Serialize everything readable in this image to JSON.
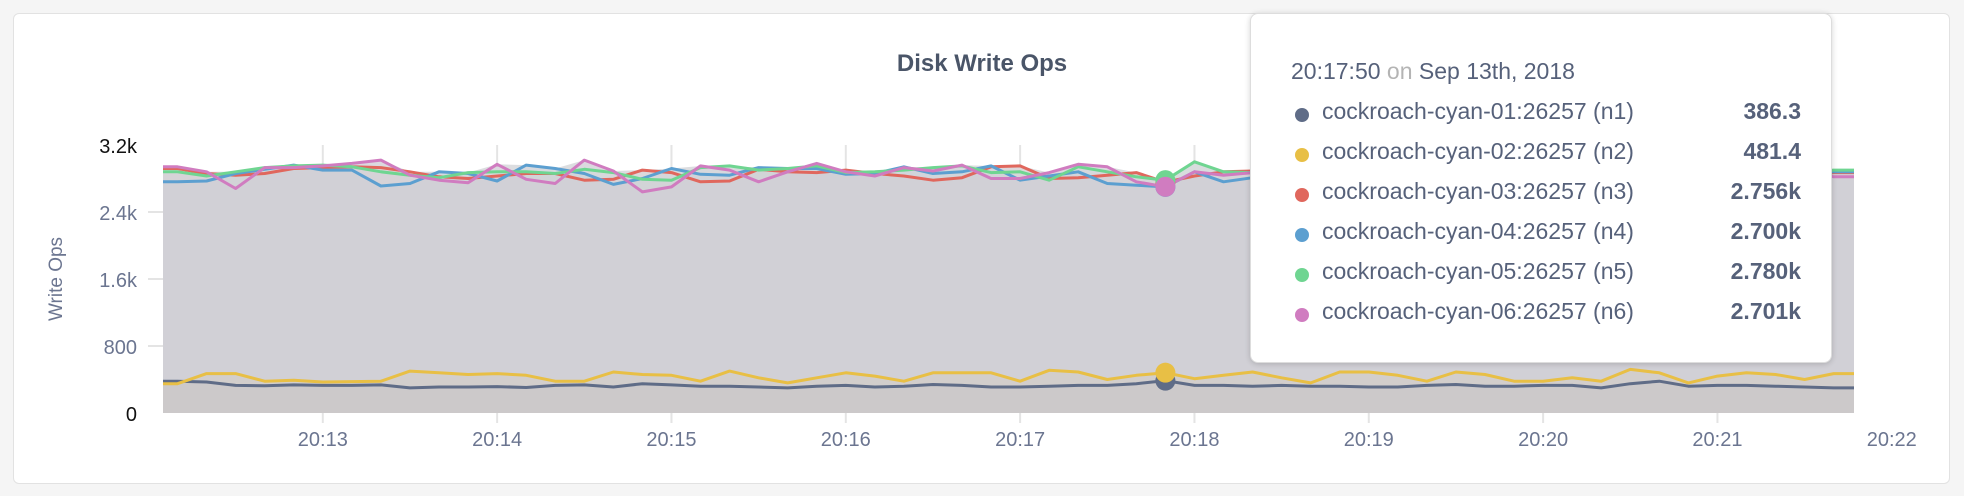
{
  "chart_data": {
    "type": "line",
    "title": "Disk Write Ops",
    "ylabel": "Write Ops",
    "xlabel": "",
    "ylim": [
      0,
      3200
    ],
    "yticks": [
      "0",
      "800",
      "1.6k",
      "2.4k",
      "3.2k"
    ],
    "ytick_values": [
      0,
      800,
      1600,
      2400,
      3200
    ],
    "xticks": [
      "20:13",
      "20:14",
      "20:15",
      "20:16",
      "20:17",
      "20:18",
      "20:19",
      "20:20",
      "20:21",
      "20:22"
    ],
    "xlim": [
      "20:12:05",
      "20:21:47"
    ],
    "grid": true,
    "area_fill": true,
    "x": [
      "20:12:10",
      "20:12:20",
      "20:12:30",
      "20:12:40",
      "20:12:50",
      "20:13:00",
      "20:13:10",
      "20:13:20",
      "20:13:30",
      "20:13:40",
      "20:13:50",
      "20:14:00",
      "20:14:10",
      "20:14:20",
      "20:14:30",
      "20:14:40",
      "20:14:50",
      "20:15:00",
      "20:15:10",
      "20:15:20",
      "20:15:30",
      "20:15:40",
      "20:15:50",
      "20:16:00",
      "20:16:10",
      "20:16:20",
      "20:16:30",
      "20:16:40",
      "20:16:50",
      "20:17:00",
      "20:17:10",
      "20:17:20",
      "20:17:30",
      "20:17:40",
      "20:17:50",
      "20:18:00",
      "20:18:10",
      "20:18:20",
      "20:18:30",
      "20:18:40",
      "20:18:50",
      "20:19:00",
      "20:19:10",
      "20:19:20",
      "20:19:30",
      "20:19:40",
      "20:19:50",
      "20:20:00",
      "20:20:10",
      "20:20:20",
      "20:20:30",
      "20:20:40",
      "20:20:50",
      "20:21:00",
      "20:21:10",
      "20:21:20",
      "20:21:30",
      "20:21:40"
    ],
    "series": [
      {
        "name": "cockroach-cyan-01:26257 (n1)",
        "color": "#5f6c87",
        "values": [
          380,
          370,
          330,
          325,
          335,
          330,
          330,
          335,
          300,
          310,
          310,
          315,
          305,
          330,
          335,
          310,
          350,
          335,
          320,
          320,
          310,
          300,
          320,
          330,
          310,
          320,
          340,
          330,
          310,
          310,
          320,
          330,
          330,
          350,
          386.3,
          330,
          330,
          320,
          330,
          320,
          320,
          310,
          310,
          330,
          340,
          320,
          320,
          330,
          330,
          300,
          350,
          380,
          320,
          330,
          330,
          320,
          310,
          300
        ]
      },
      {
        "name": "cockroach-cyan-02:26257 (n2)",
        "color": "#e8bf45",
        "values": [
          350,
          470,
          470,
          380,
          390,
          370,
          375,
          380,
          500,
          480,
          460,
          470,
          450,
          380,
          380,
          490,
          460,
          450,
          380,
          500,
          420,
          360,
          420,
          480,
          440,
          380,
          480,
          480,
          480,
          380,
          510,
          490,
          400,
          450,
          481.4,
          410,
          450,
          490,
          420,
          360,
          490,
          490,
          450,
          380,
          490,
          460,
          380,
          380,
          420,
          380,
          520,
          480,
          360,
          440,
          480,
          460,
          400,
          470
        ]
      },
      {
        "name": "cockroach-cyan-03:26257 (n3)",
        "color": "#e0675d",
        "values": [
          2920,
          2860,
          2840,
          2860,
          2920,
          2930,
          2940,
          2930,
          2880,
          2820,
          2800,
          2830,
          2860,
          2860,
          2780,
          2790,
          2900,
          2870,
          2760,
          2770,
          2910,
          2880,
          2870,
          2900,
          2860,
          2830,
          2780,
          2810,
          2940,
          2950,
          2800,
          2810,
          2840,
          2870,
          2756,
          2830,
          2880,
          2890,
          2900,
          2850,
          2800,
          2870,
          2880,
          2860,
          2820,
          2850,
          2880,
          2900,
          2860,
          2870,
          2830,
          2820,
          2860,
          2850,
          2860,
          2870,
          2830,
          2870
        ]
      },
      {
        "name": "cockroach-cyan-04:26257 (n4)",
        "color": "#5c9fd0",
        "values": [
          2760,
          2770,
          2860,
          2910,
          2960,
          2900,
          2900,
          2710,
          2740,
          2880,
          2860,
          2770,
          2960,
          2920,
          2860,
          2730,
          2800,
          2920,
          2850,
          2840,
          2930,
          2920,
          2920,
          2850,
          2860,
          2940,
          2860,
          2880,
          2950,
          2780,
          2830,
          2880,
          2740,
          2720,
          2700,
          2880,
          2760,
          2810,
          2850,
          2900,
          2820,
          2860,
          2840,
          2890,
          2870,
          2860,
          2880,
          2850,
          2790,
          2870,
          2830,
          2820,
          2880,
          2890,
          2830,
          2860,
          2870,
          2880
        ]
      },
      {
        "name": "cockroach-cyan-05:26257 (n5)",
        "color": "#6fd591",
        "values": [
          2880,
          2830,
          2880,
          2930,
          2950,
          2960,
          2940,
          2880,
          2840,
          2810,
          2870,
          2880,
          2880,
          2860,
          2910,
          2870,
          2790,
          2780,
          2930,
          2950,
          2900,
          2920,
          2950,
          2870,
          2880,
          2900,
          2930,
          2950,
          2870,
          2880,
          2780,
          2940,
          2880,
          2820,
          2780,
          3000,
          2880,
          2870,
          2890,
          2910,
          2860,
          2850,
          2880,
          2880,
          2860,
          2890,
          2880,
          2860,
          2880,
          2890,
          2910,
          2850,
          2870,
          2880,
          2890,
          2850,
          2870,
          2900
        ]
      },
      {
        "name": "cockroach-cyan-06:26257 (n6)",
        "color": "#d07cc0",
        "values": [
          2940,
          2880,
          2680,
          2930,
          2930,
          2950,
          2980,
          3020,
          2840,
          2780,
          2750,
          2970,
          2790,
          2740,
          3020,
          2890,
          2640,
          2700,
          2950,
          2900,
          2760,
          2880,
          2980,
          2880,
          2830,
          2930,
          2890,
          2960,
          2800,
          2800,
          2870,
          2970,
          2940,
          2760,
          2701,
          2880,
          2840,
          2870,
          2930,
          2860,
          2830,
          2850,
          2920,
          2880,
          2870,
          2850,
          2880,
          2860,
          2900,
          2880,
          2850,
          2870,
          2900,
          2880,
          2850,
          2870,
          2900,
          2820
        ]
      }
    ]
  },
  "tooltip": {
    "time": "20:17:50",
    "on": "on",
    "date": "Sep 13th, 2018",
    "hover_x": "20:17:50",
    "rows": [
      {
        "label": "cockroach-cyan-01:26257 (n1)",
        "value": "386.3",
        "color": "#5f6c87"
      },
      {
        "label": "cockroach-cyan-02:26257 (n2)",
        "value": "481.4",
        "color": "#e8bf45"
      },
      {
        "label": "cockroach-cyan-03:26257 (n3)",
        "value": "2.756k",
        "color": "#e0675d"
      },
      {
        "label": "cockroach-cyan-04:26257 (n4)",
        "value": "2.700k",
        "color": "#5c9fd0"
      },
      {
        "label": "cockroach-cyan-05:26257 (n5)",
        "value": "2.780k",
        "color": "#6fd591"
      },
      {
        "label": "cockroach-cyan-06:26257 (n6)",
        "value": "2.701k",
        "color": "#d07cc0"
      }
    ]
  }
}
